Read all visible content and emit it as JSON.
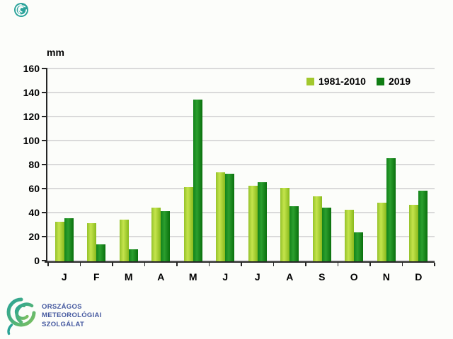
{
  "chart_data": {
    "type": "bar",
    "title": "",
    "ylabel": "mm",
    "xlabel": "",
    "categories": [
      "J",
      "F",
      "M",
      "A",
      "M",
      "J",
      "J",
      "A",
      "S",
      "O",
      "N",
      "D"
    ],
    "series": [
      {
        "name": "1981-2010",
        "color": "#a2c82d",
        "bar_gradient": [
          "#95c22a",
          "#c4e44c",
          "#89ba1d"
        ],
        "values": [
          33,
          32,
          35,
          45,
          62,
          74,
          63,
          61,
          54,
          43,
          49,
          47
        ]
      },
      {
        "name": "2019",
        "color": "#0f7d13",
        "bar_gradient": [
          "#13831a",
          "#2b9f2e",
          "#0a700d"
        ],
        "values": [
          36,
          14,
          10,
          42,
          135,
          73,
          66,
          46,
          45,
          24,
          86,
          59
        ]
      }
    ],
    "ylim": [
      0,
      160
    ],
    "ytick_step": 20,
    "grid": true,
    "legend_position": "top-right",
    "grid_color": "#dadada",
    "axis_color": "#262626"
  },
  "footer_logo": {
    "lines": [
      "ORSZÁGOS",
      "METEOROLÓGIAI",
      "SZOLGÁLAT"
    ],
    "text_color": "#44589f",
    "swirl_teal": "#2aa396",
    "swirl_green": "#7fc15e"
  }
}
